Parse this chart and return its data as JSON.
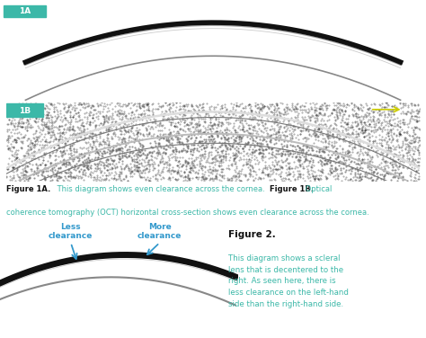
{
  "bg_color": "#ffffff",
  "label_1a_bg": "#3cb8a8",
  "label_1b_bg": "#3cb8a8",
  "teal_color": "#3cb8a8",
  "dark_color": "#111111",
  "blue_arrow_color": "#3399cc",
  "fig1a_caption_bold": "Figure 1A.",
  "fig1a_caption_text": " This diagram shows even clearance across the cornea.",
  "fig1b_caption_bold": "Figure 1B.",
  "fig1b_caption_text": " Optical",
  "fig1b_caption_line2": "coherence tomography (OCT) horizontal cross-section shows even clearance across the cornea.",
  "fig2_title_bold": "Figure 2.",
  "fig2_caption_text": "This diagram shows a scleral\nlens that is decentered to the\nright. As seen here, there is\nless clearance on the left-hand\nside than the right-hand side.",
  "less_clearance_label": "Less\nclearance",
  "more_clearance_label": "More\nclearance"
}
